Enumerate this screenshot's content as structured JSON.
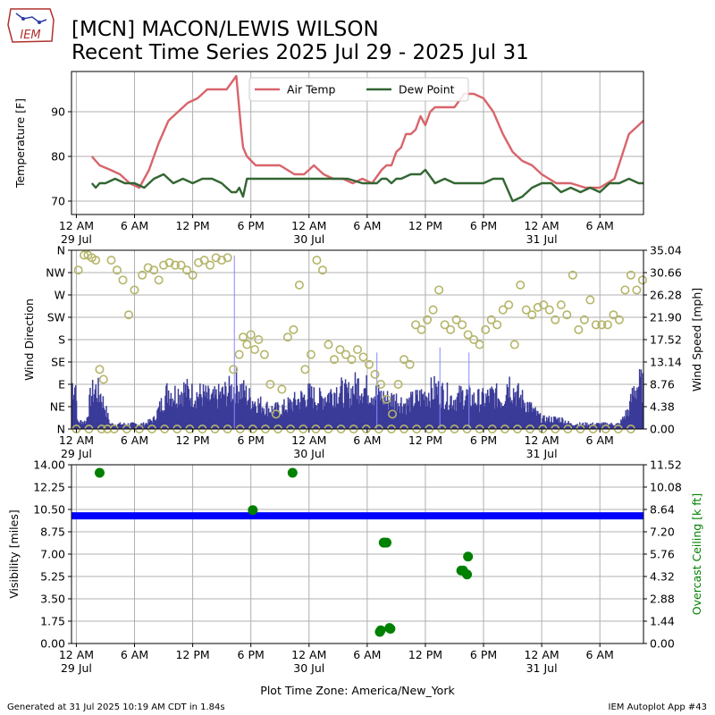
{
  "header": {
    "logo_text": "IEM",
    "title_line1": "[MCN] MACON/LEWIS WILSON",
    "title_line2": "Recent Time Series 2025 Jul 29 - 2025 Jul 31"
  },
  "footer": {
    "generated": "Generated at 31 Jul 2025 10:19 AM CDT in 1.84s",
    "app": "IEM Autoplot App #43"
  },
  "colors": {
    "air_temp": "#d9646b",
    "dew_point": "#336633",
    "wind_speed_bars": "#3a3a99",
    "wind_gust_line": "#8888ff",
    "wind_direction_markers": "#b5b56a",
    "visibility": "#0000ff",
    "ceiling": "#008000",
    "grid": "#b0b0b0"
  },
  "chart_data": [
    {
      "type": "line",
      "name": "temperature",
      "ylabel": "Temperature [F]",
      "ylim": [
        67,
        99
      ],
      "yticks": [
        70,
        80,
        90
      ],
      "xlim": [
        -0.5,
        58.5
      ],
      "xtick_hours": [
        0,
        6,
        12,
        18,
        24,
        30,
        36,
        42,
        48,
        54
      ],
      "xtick_labels": [
        "12 AM",
        "6 AM",
        "12 PM",
        "6 PM",
        "12 AM",
        "6 AM",
        "12 PM",
        "6 PM",
        "12 AM",
        "6 AM"
      ],
      "xtick_sublabels": [
        "29 Jul",
        "",
        "",
        "",
        "30 Jul",
        "",
        "",
        "",
        "31 Jul",
        ""
      ],
      "legend": "top-center",
      "grid": true,
      "series": [
        {
          "name": "Air Temp",
          "x": [
            1.6,
            2.0,
            2.4,
            3.5,
            4.5,
            5.5,
            6.5,
            7.5,
            8.5,
            9.5,
            10.5,
            11.5,
            12.5,
            13.5,
            14.5,
            15.5,
            16.5,
            17.0,
            17.2,
            17.6,
            18.5,
            19.5,
            21.0,
            22.5,
            23.5,
            24.5,
            25.5,
            26.5,
            27.5,
            28.5,
            29.5,
            30.5,
            31.5,
            32.0,
            32.5,
            33.0,
            33.5,
            34.0,
            34.5,
            35.0,
            35.5,
            36.0,
            36.5,
            37.0,
            38.0,
            39.0,
            40.0,
            41.0,
            42.0,
            43.0,
            44.0,
            45.0,
            46.0,
            47.0,
            48.0,
            49.5,
            51.0,
            52.5,
            54.0,
            55.5,
            57.0,
            58.5
          ],
          "y": [
            80,
            79,
            78,
            77,
            76,
            74,
            73,
            77,
            83,
            88,
            90,
            92,
            93,
            95,
            95,
            95,
            98,
            86,
            82,
            80,
            78,
            78,
            78,
            76,
            76,
            78,
            76,
            75,
            75,
            74,
            75,
            74,
            77,
            78,
            78,
            81,
            82,
            85,
            85,
            86,
            89,
            87,
            90,
            91,
            91,
            91,
            94,
            94,
            93,
            90,
            85,
            81,
            79,
            78,
            76,
            74,
            74,
            73,
            73,
            75,
            85,
            88
          ]
        },
        {
          "name": "Dew Point",
          "x": [
            1.6,
            2.0,
            2.4,
            3.0,
            4.0,
            5.0,
            6.0,
            7.0,
            8.0,
            9.0,
            10.0,
            11.0,
            12.0,
            13.0,
            14.0,
            15.0,
            16.0,
            16.5,
            16.8,
            17.2,
            17.6,
            18.5,
            20.0,
            22.0,
            24.0,
            26.0,
            28.0,
            29.5,
            31.0,
            31.5,
            32.0,
            32.5,
            33.0,
            33.5,
            34.5,
            35.5,
            36.0,
            37.0,
            38.0,
            39.0,
            40.0,
            41.0,
            42.0,
            43.0,
            44.0,
            45.0,
            46.0,
            47.0,
            48.0,
            49.0,
            50.0,
            51.0,
            52.0,
            53.0,
            54.0,
            55.0,
            56.0,
            57.0,
            58.0,
            58.5
          ],
          "y": [
            74,
            73,
            74,
            74,
            75,
            74,
            74,
            73,
            75,
            76,
            74,
            75,
            74,
            75,
            75,
            74,
            72,
            72,
            73,
            71,
            75,
            75,
            75,
            75,
            75,
            75,
            75,
            74,
            74,
            75,
            75,
            74,
            75,
            75,
            76,
            76,
            77,
            74,
            75,
            74,
            74,
            74,
            74,
            75,
            75,
            70,
            71,
            73,
            74,
            74,
            72,
            73,
            72,
            73,
            72,
            74,
            74,
            75,
            74,
            74
          ]
        }
      ]
    },
    {
      "type": "bar",
      "name": "wind",
      "ylabel": "Wind Direction",
      "ylabel_right": "Wind Speed [mph]",
      "direction_ticks": [
        "N",
        "NE",
        "E",
        "SE",
        "S",
        "SW",
        "W",
        "NW",
        "N"
      ],
      "speed_ticks": [
        "0.00",
        "4.38",
        "8.76",
        "13.14",
        "17.52",
        "21.90",
        "26.28",
        "30.66",
        "35.04"
      ],
      "ylim_direction": [
        0,
        360
      ],
      "ylim_speed": [
        0,
        35.04
      ],
      "xlim": [
        -0.5,
        58.5
      ],
      "xtick_labels": [
        "12 AM",
        "6 AM",
        "12 PM",
        "6 PM",
        "12 AM",
        "6 AM",
        "12 PM",
        "6 PM",
        "12 AM",
        "6 AM"
      ],
      "xtick_sublabels": [
        "29 Jul",
        "",
        "",
        "",
        "30 Jul",
        "",
        "",
        "",
        "31 Jul",
        ""
      ],
      "grid": true,
      "wind_speed_envelope": {
        "hours": [
          0.0,
          1.0,
          1.5,
          2.0,
          2.5,
          3.0,
          3.5,
          4.0,
          5.0,
          6.0,
          7.0,
          8.0,
          9.0,
          9.5,
          10.0,
          11.0,
          12.0,
          13.0,
          14.0,
          15.0,
          16.0,
          16.5,
          17.0,
          17.5,
          18.0,
          19.0,
          20.0,
          21.0,
          22.0,
          23.0,
          24.0,
          25.0,
          26.0,
          27.0,
          28.0,
          29.0,
          30.0,
          31.0,
          32.0,
          33.0,
          34.0,
          35.0,
          36.0,
          37.0,
          38.0,
          39.0,
          40.0,
          41.0,
          42.0,
          43.0,
          44.0,
          44.5,
          45.0,
          46.0,
          47.0,
          48.0,
          49.0,
          50.0,
          51.0,
          52.0,
          53.0,
          54.0,
          55.0,
          56.0,
          57.0,
          57.5,
          58.0,
          58.5
        ],
        "mph": [
          1.5,
          1.5,
          7,
          8,
          7,
          4,
          1,
          1,
          1,
          1,
          1,
          2,
          6,
          8,
          7,
          8,
          7,
          7,
          6,
          7,
          8,
          9,
          8,
          7,
          6,
          5,
          4,
          4,
          5,
          6,
          7,
          6,
          7,
          8,
          7,
          9,
          8,
          7,
          6,
          6,
          5,
          6,
          7,
          8,
          7,
          6,
          7,
          6,
          6,
          7,
          6,
          10,
          8,
          6,
          4,
          2,
          2,
          2,
          1,
          1,
          1,
          1,
          1,
          1,
          4,
          8,
          9,
          9
        ]
      },
      "wind_gusts": {
        "hours": [
          16.3,
          31.0,
          37.5,
          40.5
        ],
        "mph": [
          34,
          15,
          16,
          15
        ]
      },
      "wind_direction_deg": {
        "hours": [
          0.2,
          0.8,
          1.2,
          1.6,
          2.0,
          2.4,
          2.8,
          3.2,
          3.6,
          4.2,
          4.8,
          5.4,
          6.0,
          6.8,
          7.4,
          8.0,
          8.5,
          9.0,
          9.6,
          10.2,
          10.8,
          11.4,
          12.0,
          12.6,
          13.2,
          13.8,
          14.4,
          15.0,
          15.6,
          16.2,
          16.8,
          17.2,
          17.6,
          18.0,
          18.4,
          18.8,
          19.4,
          20.0,
          20.6,
          21.2,
          21.8,
          22.4,
          23.0,
          23.6,
          24.2,
          24.8,
          25.4,
          26.0,
          26.6,
          27.2,
          27.8,
          28.4,
          29.0,
          29.6,
          30.2,
          30.8,
          31.4,
          32.0,
          32.6,
          33.2,
          33.8,
          34.4,
          35.0,
          35.6,
          36.2,
          36.8,
          37.4,
          38.0,
          38.6,
          39.2,
          39.8,
          40.4,
          41.0,
          41.6,
          42.2,
          42.8,
          43.4,
          44.0,
          44.6,
          45.2,
          45.8,
          46.4,
          47.0,
          47.6,
          48.2,
          48.8,
          49.4,
          50.0,
          50.6,
          51.2,
          51.8,
          52.4,
          53.0,
          53.6,
          54.2,
          54.8,
          55.4,
          56.0,
          56.6,
          57.2,
          57.8,
          58.4
        ],
        "deg": [
          320,
          350,
          350,
          345,
          340,
          120,
          100,
          0,
          340,
          320,
          300,
          230,
          280,
          310,
          325,
          320,
          300,
          330,
          335,
          330,
          330,
          320,
          310,
          335,
          340,
          330,
          345,
          340,
          345,
          120,
          150,
          185,
          170,
          190,
          160,
          180,
          150,
          90,
          30,
          80,
          185,
          200,
          290,
          120,
          150,
          340,
          320,
          170,
          140,
          160,
          150,
          140,
          160,
          145,
          130,
          110,
          90,
          60,
          30,
          90,
          140,
          130,
          210,
          200,
          220,
          240,
          280,
          210,
          200,
          220,
          210,
          190,
          180,
          170,
          200,
          220,
          210,
          240,
          250,
          170,
          290,
          240,
          230,
          245,
          250,
          240,
          220,
          250,
          230,
          310,
          200,
          220,
          260,
          210,
          210,
          210,
          230,
          220,
          280,
          310,
          280,
          300
        ]
      }
    },
    {
      "type": "scatter",
      "name": "visibility_ceiling",
      "ylabel": "Visibility [miles]",
      "ylabel_right": "Overcast Ceiling [k ft]",
      "vis_ticks": [
        "0.00",
        "1.75",
        "3.50",
        "5.25",
        "7.00",
        "8.75",
        "10.50",
        "12.25",
        "14.00"
      ],
      "ceil_ticks": [
        "0.00",
        "1.44",
        "2.88",
        "4.32",
        "5.76",
        "7.20",
        "8.64",
        "10.08",
        "11.52"
      ],
      "ylim_visibility": [
        0,
        14
      ],
      "ylim_ceiling": [
        0,
        11.52
      ],
      "xlim": [
        -0.5,
        58.5
      ],
      "xtick_labels": [
        "12 AM",
        "6 AM",
        "12 PM",
        "6 PM",
        "12 AM",
        "6 AM",
        "12 PM",
        "6 PM",
        "12 AM",
        "6 AM"
      ],
      "xtick_sublabels": [
        "29 Jul",
        "",
        "",
        "",
        "30 Jul",
        "",
        "",
        "",
        "31 Jul",
        ""
      ],
      "xlabel": "Plot Time Zone: America/New_York",
      "grid": true,
      "visibility": {
        "start_hour": -0.5,
        "end_hour": 58.5,
        "miles": 10
      },
      "ceiling": {
        "hours": [
          2.4,
          18.2,
          22.3,
          31.3,
          31.4,
          31.7,
          31.8,
          32.0,
          32.3,
          32.4,
          39.7,
          39.9,
          40.3,
          40.4
        ],
        "kft": [
          11.0,
          8.6,
          11.0,
          0.75,
          0.85,
          6.5,
          6.5,
          6.5,
          1.0,
          0.95,
          4.7,
          4.7,
          4.45,
          5.6
        ]
      }
    }
  ]
}
